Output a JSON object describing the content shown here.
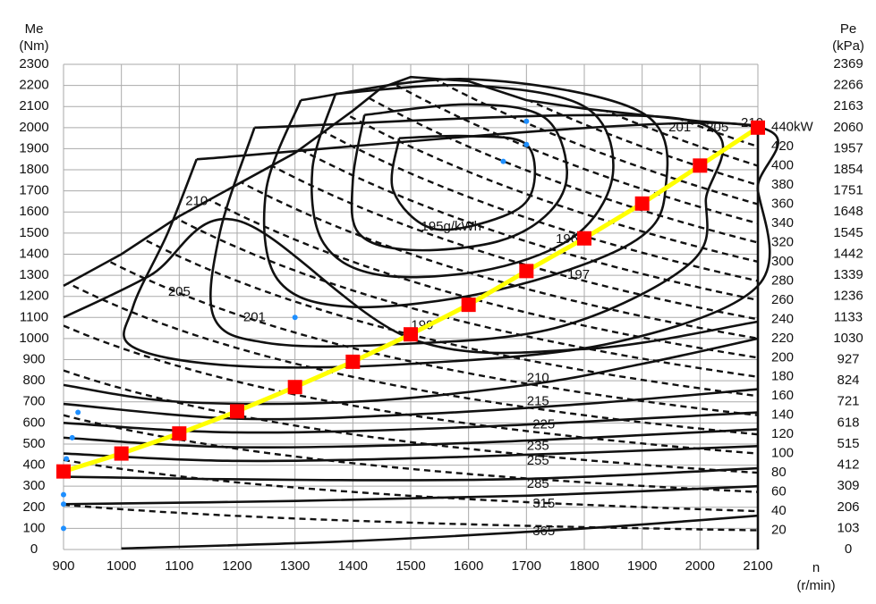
{
  "chart_data": {
    "type": "line",
    "x_label": "n",
    "x_unit": "(r/min)",
    "y_label": "Me",
    "y_unit": "(Nm)",
    "y2_label": "Pe",
    "y2_unit": "(kPa)",
    "xlim": [
      900,
      2100
    ],
    "xticks": [
      900,
      1000,
      1100,
      1200,
      1300,
      1400,
      1500,
      1600,
      1700,
      1800,
      1900,
      2000,
      2100
    ],
    "ylim": [
      0,
      2300
    ],
    "yticks": [
      0,
      100,
      200,
      300,
      400,
      500,
      600,
      700,
      800,
      900,
      1000,
      1100,
      1200,
      1300,
      1400,
      1500,
      1600,
      1700,
      1800,
      1900,
      2000,
      2100,
      2200,
      2300
    ],
    "y2lim": [
      0,
      2369
    ],
    "y2ticks": [
      0,
      103,
      206,
      309,
      412,
      515,
      618,
      721,
      824,
      927,
      1030,
      1133,
      1236,
      1339,
      1442,
      1545,
      1648,
      1751,
      1854,
      1957,
      2060,
      2163,
      2266,
      2369
    ],
    "power_ticks": [
      20,
      40,
      60,
      80,
      100,
      120,
      140,
      160,
      180,
      200,
      220,
      240,
      260,
      280,
      300,
      320,
      340,
      360,
      380,
      400,
      420,
      {
        "value": 440,
        "label": "440kW"
      }
    ],
    "grid": true,
    "full_load": {
      "x": [
        900,
        1000,
        1100,
        1200,
        1300,
        1400,
        1450,
        1500,
        1600,
        1700,
        1800,
        1900,
        2000,
        2100,
        2100
      ],
      "values": [
        1250,
        1400,
        1580,
        1730,
        1880,
        2080,
        2190,
        2240,
        2220,
        2130,
        2090,
        2060,
        2030,
        2010,
        0
      ]
    },
    "contours": [
      {
        "name": "195g/kWh",
        "x": [
          1480,
          1600,
          1700,
          1710,
          1660,
          1540,
          1470,
          1480
        ],
        "values": [
          1950,
          1960,
          1920,
          1700,
          1580,
          1520,
          1700,
          1950
        ]
      },
      {
        "name": "196",
        "x": [
          1420,
          1600,
          1730,
          1770,
          1740,
          1650,
          1500,
          1410,
          1400,
          1420
        ],
        "values": [
          2060,
          2110,
          2050,
          1800,
          1600,
          1460,
          1420,
          1500,
          1750,
          2060
        ]
      },
      {
        "name": "197",
        "x": [
          1370,
          1600,
          1800,
          1850,
          1790,
          1640,
          1450,
          1350,
          1330,
          1370
        ],
        "values": [
          2160,
          2200,
          2100,
          1800,
          1500,
          1330,
          1300,
          1450,
          1800,
          2160
        ]
      },
      {
        "name": "199",
        "x": [
          1310,
          1600,
          1900,
          1940,
          1880,
          1650,
          1400,
          1270,
          1250,
          1310
        ],
        "values": [
          2130,
          2230,
          2070,
          1700,
          1450,
          1230,
          1150,
          1280,
          1700,
          2130
        ]
      },
      {
        "name": "201",
        "x": [
          1230,
          1970,
          2010,
          1980,
          1750,
          1450,
          1250,
          1160,
          1170,
          1230
        ],
        "values": [
          2000,
          2040,
          1650,
          1350,
          1050,
          970,
          980,
          1100,
          1500,
          2000
        ]
      },
      {
        "name": "205",
        "x": [
          1130,
          2050,
          2100,
          2100,
          1850,
          1500,
          1200,
          1020,
          1020,
          1080,
          1130
        ],
        "values": [
          1850,
          2020,
          1700,
          1250,
          980,
          880,
          870,
          960,
          1150,
          1500,
          1850
        ]
      },
      {
        "name": "210",
        "x": [
          900,
          1050,
          1200,
          1500,
          1800,
          2100
        ],
        "values": [
          1100,
          1300,
          1560,
          1000,
          950,
          1080
        ]
      },
      {
        "name": "210",
        "x": [
          900,
          1100,
          1400,
          1700,
          1900,
          2100
        ],
        "values": [
          780,
          700,
          700,
          780,
          880,
          1000
        ]
      },
      {
        "name": "215",
        "x": [
          900,
          1200,
          1500,
          1800,
          2100
        ],
        "values": [
          690,
          620,
          640,
          690,
          760
        ]
      },
      {
        "name": "225",
        "x": [
          900,
          1200,
          1600,
          2100
        ],
        "values": [
          600,
          555,
          580,
          650
        ]
      },
      {
        "name": "235",
        "x": [
          900,
          1200,
          1600,
          2100
        ],
        "values": [
          530,
          485,
          505,
          570
        ]
      },
      {
        "name": "255",
        "x": [
          900,
          1200,
          1600,
          2100
        ],
        "values": [
          455,
          420,
          440,
          490
        ]
      },
      {
        "name": "285",
        "x": [
          900,
          1300,
          1700,
          2100
        ],
        "values": [
          345,
          330,
          335,
          385
        ]
      },
      {
        "name": "315",
        "x": [
          900,
          1300,
          1700,
          2100
        ],
        "values": [
          215,
          230,
          255,
          300
        ]
      },
      {
        "name": "365",
        "x": [
          1000,
          1400,
          1800,
          2100
        ],
        "values": [
          5,
          40,
          100,
          160
        ]
      }
    ],
    "operating_line": {
      "color": "#ffff00",
      "marker_color": "#ff0000",
      "x": [
        900,
        1000,
        1100,
        1200,
        1300,
        1400,
        1500,
        1600,
        1700,
        1800,
        1900,
        2000,
        2100
      ],
      "values": [
        370,
        455,
        550,
        655,
        770,
        890,
        1020,
        1160,
        1320,
        1475,
        1640,
        1820,
        2000
      ]
    },
    "points": {
      "color": "#1e8fff",
      "x": [
        1700,
        1700,
        1660,
        1300,
        925,
        915,
        905,
        900,
        900,
        900,
        900
      ],
      "values": [
        2030,
        1920,
        1840,
        1100,
        650,
        530,
        430,
        350,
        260,
        215,
        100
      ]
    }
  }
}
